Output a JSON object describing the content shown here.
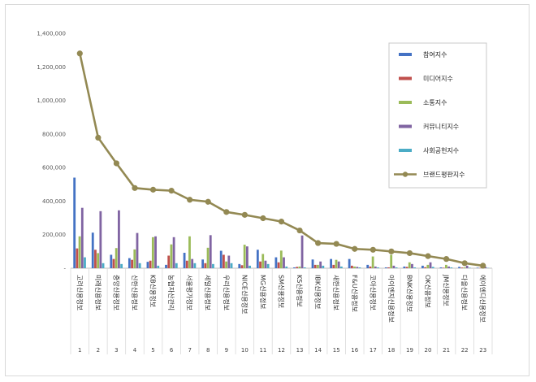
{
  "chart_data": {
    "type": "bar",
    "title": "",
    "xlabel": "",
    "ylabel": "",
    "ylim": [
      0,
      1400000
    ],
    "yticks": [
      "-",
      "200,000",
      "400,000",
      "600,000",
      "800,000",
      "1,000,000",
      "1,200,000",
      "1,400,000"
    ],
    "grid": false,
    "legend_position": "top-right",
    "ranks": [
      "1",
      "2",
      "3",
      "4",
      "5",
      "6",
      "7",
      "8",
      "9",
      "10",
      "11",
      "12",
      "13",
      "14",
      "15",
      "16",
      "17",
      "18",
      "19",
      "20",
      "21",
      "22",
      "23"
    ],
    "categories": [
      "고려신용정보",
      "미래신용정보",
      "중앙신용정보",
      "신한신용정보",
      "KB신용정보",
      "농협자산관리",
      "서울평가정보",
      "세일신용정보",
      "우리신용정보",
      "NICE신용정보",
      "MG신용정보",
      "SM신용정보",
      "KS신용정보",
      "IBK신용정보",
      "새한신용정보",
      "F&U신용정보",
      "코아신용정보",
      "아이엔지신용정보",
      "BNK신용정보",
      "OK신용정보",
      "JM신용정보",
      "다올신용정보",
      "에이엔디신용정보"
    ],
    "series": [
      {
        "name": "참여지수",
        "color": "#4472c4",
        "type": "bar",
        "values": [
          540000,
          212000,
          80000,
          60000,
          38000,
          20000,
          92000,
          52000,
          104000,
          25000,
          110000,
          65000,
          5000,
          52000,
          55000,
          55000,
          20000,
          5000,
          10000,
          15000,
          5000,
          8000,
          3000
        ]
      },
      {
        "name": "미디어지수",
        "color": "#c0504d",
        "type": "bar",
        "values": [
          118000,
          110000,
          55000,
          50000,
          45000,
          75000,
          45000,
          30000,
          80000,
          18000,
          40000,
          35000,
          8000,
          20000,
          20000,
          15000,
          10000,
          5000,
          8000,
          6000,
          3000,
          4000,
          2000
        ]
      },
      {
        "name": "소통지수",
        "color": "#9bbb59",
        "type": "bar",
        "values": [
          190000,
          90000,
          120000,
          112000,
          185000,
          142000,
          190000,
          122000,
          40000,
          140000,
          85000,
          105000,
          10000,
          20000,
          50000,
          10000,
          70000,
          80000,
          35000,
          20000,
          20000,
          5000,
          5000
        ]
      },
      {
        "name": "커뮤니티지수",
        "color": "#8064a2",
        "type": "bar",
        "values": [
          360000,
          340000,
          345000,
          210000,
          190000,
          185000,
          55000,
          197000,
          75000,
          130000,
          45000,
          65000,
          195000,
          40000,
          40000,
          8000,
          10000,
          15000,
          25000,
          35000,
          10000,
          15000,
          8000
        ]
      },
      {
        "name": "사회공헌지수",
        "color": "#4bacc6",
        "type": "bar",
        "values": [
          65000,
          30000,
          25000,
          30000,
          15000,
          30000,
          30000,
          25000,
          30000,
          15000,
          25000,
          10000,
          5000,
          15000,
          10000,
          5000,
          5000,
          5000,
          5000,
          8000,
          5000,
          3000,
          2000
        ]
      },
      {
        "name": "브랜드평판지수",
        "color": "#938953",
        "type": "line",
        "values": [
          1280000,
          778000,
          625000,
          478000,
          468000,
          462000,
          408000,
          396000,
          335000,
          318000,
          298000,
          278000,
          225000,
          150000,
          145000,
          115000,
          110000,
          100000,
          90000,
          72000,
          55000,
          30000,
          15000
        ]
      }
    ]
  }
}
